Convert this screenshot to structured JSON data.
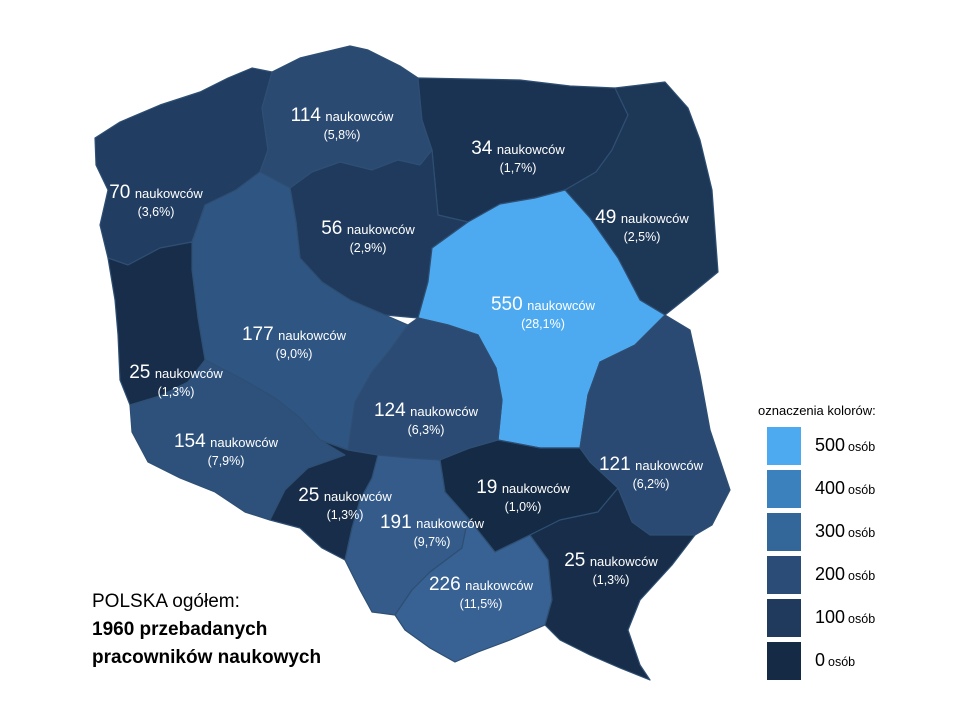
{
  "regions": [
    {
      "id": "pomorskie",
      "count": "114",
      "unit": "naukowców",
      "percent": "(5,8%)",
      "color": "#2b4a72"
    },
    {
      "id": "warminsko-mazurskie",
      "count": "34",
      "unit": "naukowców",
      "percent": "(1,7%)",
      "color": "#1b3352"
    },
    {
      "id": "zachodniopomorskie",
      "count": "70",
      "unit": "naukowców",
      "percent": "(3,6%)",
      "color": "#213d61"
    },
    {
      "id": "kujawsko-pomorskie",
      "count": "56",
      "unit": "naukowców",
      "percent": "(2,9%)",
      "color": "#1f3a5c"
    },
    {
      "id": "podlaskie",
      "count": "49",
      "unit": "naukowców",
      "percent": "(2,5%)",
      "color": "#1d3757"
    },
    {
      "id": "mazowieckie",
      "count": "550",
      "unit": "naukowców",
      "percent": "(28,1%)",
      "color": "#4eaaf0"
    },
    {
      "id": "wielkopolskie",
      "count": "177",
      "unit": "naukowców",
      "percent": "(9,0%)",
      "color": "#2f5582"
    },
    {
      "id": "lubuskie",
      "count": "25",
      "unit": "naukowców",
      "percent": "(1,3%)",
      "color": "#172d49"
    },
    {
      "id": "lodzkie",
      "count": "124",
      "unit": "naukowców",
      "percent": "(6,3%)",
      "color": "#2b4b74"
    },
    {
      "id": "lubelskie",
      "count": "121",
      "unit": "naukowców",
      "percent": "(6,2%)",
      "color": "#2b4a73"
    },
    {
      "id": "dolnoslaskie",
      "count": "154",
      "unit": "naukowców",
      "percent": "(7,9%)",
      "color": "#2e517c"
    },
    {
      "id": "opolskie",
      "count": "25",
      "unit": "naukowców",
      "percent": "(1,3%)",
      "color": "#172d49"
    },
    {
      "id": "swietokrzyskie",
      "count": "19",
      "unit": "naukowców",
      "percent": "(1,0%)",
      "color": "#152a44"
    },
    {
      "id": "slaskie",
      "count": "191",
      "unit": "naukowców",
      "percent": "(9,7%)",
      "color": "#345b8a"
    },
    {
      "id": "malopolskie",
      "count": "226",
      "unit": "naukowców",
      "percent": "(11,5%)",
      "color": "#386293"
    },
    {
      "id": "podkarpackie",
      "count": "25",
      "unit": "naukowców",
      "percent": "(1,3%)",
      "color": "#172d49"
    }
  ],
  "legend": {
    "title": "oznaczenia kolorów:",
    "unit": "osób",
    "items": [
      {
        "value": "500",
        "color": "#4eaaf0"
      },
      {
        "value": "400",
        "color": "#3b81bd"
      },
      {
        "value": "300",
        "color": "#33679a"
      },
      {
        "value": "200",
        "color": "#2a4c76"
      },
      {
        "value": "100",
        "color": "#1f3a5c"
      },
      {
        "value": "0",
        "color": "#152a44"
      }
    ]
  },
  "summary": {
    "line1": "POLSKA ogółem:",
    "line2": "1960 przebadanych",
    "line3": "pracowników naukowych"
  }
}
